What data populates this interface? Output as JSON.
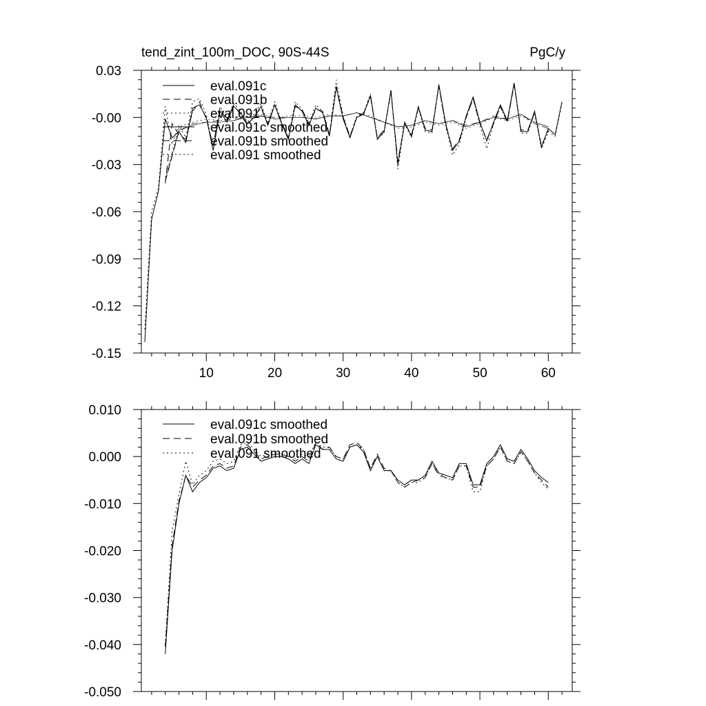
{
  "chart_data": [
    {
      "type": "line",
      "title": "tend_zint_100m_DOC, 90S-44S",
      "units": "PgC/y",
      "xlim": [
        0.5,
        63.5
      ],
      "ylim": [
        -0.15,
        0.03
      ],
      "xticks": [
        10,
        20,
        30,
        40,
        50,
        60
      ],
      "yticks": [
        0.03,
        0.0,
        -0.03,
        -0.06,
        -0.09,
        -0.12,
        -0.15
      ],
      "ytick_labels": [
        "0.03",
        "-0.00",
        "-0.03",
        "-0.06",
        "-0.09",
        "-0.12",
        "-0.15"
      ],
      "legend_position": "top-left",
      "series": [
        {
          "name": "eval.091c",
          "style": "solid",
          "x": [
            1,
            2,
            3,
            4,
            5,
            6,
            7,
            8,
            9,
            10,
            11,
            12,
            13,
            14,
            15,
            16,
            17,
            18,
            19,
            20,
            21,
            22,
            23,
            24,
            25,
            26,
            27,
            28,
            29,
            30,
            31,
            32,
            33,
            34,
            35,
            36,
            37,
            38,
            39,
            40,
            41,
            42,
            43,
            44,
            45,
            46,
            47,
            48,
            49,
            50,
            51,
            52,
            53,
            54,
            55,
            56,
            57,
            58,
            59,
            60,
            61,
            62
          ],
          "y": [
            -0.143,
            -0.065,
            -0.047,
            -0.001,
            -0.013,
            -0.009,
            -0.016,
            0.006,
            0.008,
            0.0,
            -0.021,
            0.004,
            -0.003,
            0.007,
            0.003,
            -0.004,
            0.0,
            0.007,
            -0.005,
            0.008,
            -0.004,
            -0.014,
            0.008,
            0.004,
            -0.005,
            0.006,
            0.003,
            -0.012,
            0.019,
            -0.001,
            -0.013,
            0.0,
            0.002,
            0.014,
            -0.014,
            -0.009,
            0.017,
            -0.03,
            -0.003,
            -0.012,
            0.007,
            -0.008,
            -0.009,
            0.021,
            -0.004,
            -0.021,
            -0.015,
            0.001,
            0.013,
            -0.003,
            -0.015,
            -0.003,
            0.008,
            -0.002,
            0.022,
            -0.009,
            -0.009,
            0.004,
            -0.019,
            -0.007,
            -0.011,
            0.01
          ]
        },
        {
          "name": "eval.091b",
          "style": "dashed",
          "x": [
            4,
            5,
            6,
            7,
            8,
            9,
            10,
            11,
            12,
            13,
            14,
            15,
            16,
            17,
            18,
            19,
            20,
            21,
            22,
            23,
            24,
            25,
            26,
            27,
            28,
            29,
            30,
            31,
            32,
            33,
            34,
            35,
            36,
            37,
            38,
            39,
            40,
            41,
            42,
            43,
            44,
            45,
            46,
            47,
            48,
            49,
            50,
            51,
            52,
            53,
            54,
            55,
            56,
            57,
            58,
            59,
            60
          ],
          "y": [
            -0.042,
            -0.004,
            -0.011,
            -0.014,
            0.004,
            0.01,
            -0.001,
            -0.018,
            0.006,
            -0.002,
            0.008,
            0.002,
            -0.005,
            0.001,
            0.006,
            -0.004,
            0.008,
            -0.003,
            -0.013,
            0.007,
            0.005,
            -0.004,
            0.005,
            0.004,
            -0.011,
            0.02,
            0.0,
            -0.012,
            0.0,
            0.003,
            0.013,
            -0.013,
            -0.008,
            0.016,
            -0.028,
            -0.004,
            -0.011,
            0.006,
            -0.007,
            -0.008,
            0.02,
            -0.005,
            -0.02,
            -0.014,
            0.0,
            0.012,
            -0.004,
            -0.014,
            -0.004,
            0.007,
            -0.003,
            0.021,
            -0.008,
            -0.008,
            0.003,
            -0.018,
            -0.008
          ]
        },
        {
          "name": "eval.091",
          "style": "dotted",
          "x": [
            1,
            2,
            3,
            4,
            5,
            6,
            7,
            8,
            9,
            10,
            11,
            12,
            13,
            14,
            15,
            16,
            17,
            18,
            19,
            20,
            21,
            22,
            23,
            24,
            25,
            26,
            27,
            28,
            29,
            30,
            31,
            32,
            33,
            34,
            35,
            36,
            37,
            38,
            39,
            40,
            41,
            42,
            43,
            44,
            45,
            46,
            47,
            48,
            49,
            50,
            51,
            52,
            53,
            54,
            55,
            56,
            57,
            58,
            59,
            60,
            61,
            62
          ],
          "y": [
            -0.135,
            -0.06,
            -0.045,
            0.007,
            -0.017,
            -0.005,
            -0.013,
            0.01,
            0.012,
            0.002,
            -0.02,
            0.007,
            -0.001,
            0.009,
            0.004,
            -0.003,
            0.002,
            0.009,
            -0.004,
            0.01,
            -0.003,
            -0.013,
            0.01,
            0.005,
            -0.004,
            0.008,
            0.004,
            -0.011,
            0.024,
            0.001,
            -0.012,
            0.001,
            0.003,
            0.015,
            -0.013,
            -0.01,
            0.018,
            -0.033,
            -0.004,
            -0.013,
            0.006,
            -0.009,
            -0.01,
            0.02,
            -0.006,
            -0.024,
            -0.017,
            0.0,
            0.012,
            -0.005,
            -0.02,
            -0.004,
            0.007,
            -0.003,
            0.021,
            -0.01,
            -0.01,
            0.003,
            -0.02,
            -0.009,
            -0.012,
            0.009
          ]
        },
        {
          "name": "eval.091c smoothed",
          "style": "solid",
          "width": 0.7,
          "x": [
            4,
            6,
            8,
            10,
            12,
            14,
            16,
            18,
            20,
            22,
            24,
            26,
            28,
            30,
            32,
            34,
            36,
            38,
            40,
            42,
            44,
            46,
            48,
            50,
            52,
            54,
            56,
            58,
            60
          ],
          "y": [
            -0.04,
            -0.008,
            -0.005,
            -0.003,
            -0.003,
            -0.002,
            0.0,
            0.001,
            -0.001,
            0.0,
            0.0,
            -0.001,
            0.001,
            0.001,
            0.003,
            0.0,
            -0.003,
            -0.006,
            -0.005,
            -0.002,
            -0.004,
            -0.002,
            -0.006,
            -0.003,
            0.0,
            -0.001,
            0.002,
            -0.003,
            -0.006
          ]
        },
        {
          "name": "eval.091b smoothed",
          "style": "dashed",
          "width": 0.7,
          "x": [
            4,
            6,
            8,
            10,
            12,
            14,
            16,
            18,
            20,
            22,
            24,
            26,
            28,
            30,
            32,
            34,
            36,
            38,
            40,
            42,
            44,
            46,
            48,
            50,
            52,
            54,
            56,
            58,
            60
          ],
          "y": [
            -0.041,
            -0.009,
            -0.004,
            -0.003,
            -0.002,
            -0.001,
            0.0,
            0.001,
            0.0,
            0.0,
            0.0,
            -0.001,
            0.001,
            0.001,
            0.003,
            0.0,
            -0.003,
            -0.006,
            -0.005,
            -0.002,
            -0.004,
            -0.002,
            -0.005,
            -0.003,
            0.001,
            -0.001,
            0.002,
            -0.004,
            -0.007
          ]
        },
        {
          "name": "eval.091 smoothed",
          "style": "dotted",
          "width": 0.7,
          "x": [
            4,
            6,
            8,
            10,
            12,
            14,
            16,
            18,
            20,
            22,
            24,
            26,
            28,
            30,
            32,
            34,
            36,
            38,
            40,
            42,
            44,
            46,
            48,
            50,
            52,
            54,
            56,
            58,
            60
          ],
          "y": [
            -0.038,
            -0.006,
            -0.003,
            -0.001,
            -0.002,
            0.0,
            0.001,
            0.002,
            0.0,
            0.001,
            0.001,
            0.0,
            0.002,
            0.001,
            0.003,
            0.001,
            -0.003,
            -0.007,
            -0.006,
            -0.003,
            -0.005,
            -0.003,
            -0.007,
            -0.004,
            0.0,
            -0.002,
            0.001,
            -0.004,
            -0.007
          ]
        }
      ]
    },
    {
      "type": "line",
      "title": "",
      "xlim": [
        0.5,
        63.5
      ],
      "ylim": [
        -0.05,
        0.01
      ],
      "xticks": [
        10,
        20,
        30,
        40,
        50,
        60
      ],
      "xtick_labels_shown": false,
      "yticks": [
        0.01,
        0.0,
        -0.01,
        -0.02,
        -0.03,
        -0.04,
        -0.05
      ],
      "ytick_labels": [
        "0.010",
        "0.000",
        "-0.010",
        "-0.020",
        "-0.030",
        "-0.040",
        "-0.050"
      ],
      "legend_position": "top-left",
      "series": [
        {
          "name": "eval.091c smoothed",
          "style": "solid",
          "x": [
            4,
            5,
            6,
            7,
            8,
            9,
            10,
            11,
            12,
            13,
            14,
            15,
            16,
            17,
            18,
            19,
            20,
            21,
            22,
            23,
            24,
            25,
            26,
            27,
            28,
            29,
            30,
            31,
            32,
            33,
            34,
            35,
            36,
            37,
            38,
            39,
            40,
            41,
            42,
            43,
            44,
            45,
            46,
            47,
            48,
            49,
            50,
            51,
            52,
            53,
            54,
            55,
            56,
            57,
            58,
            59,
            60
          ],
          "y": [
            -0.042,
            -0.02,
            -0.01,
            -0.004,
            -0.0075,
            -0.0055,
            -0.0045,
            -0.0025,
            -0.002,
            -0.003,
            -0.0025,
            0.0015,
            0.002,
            0.0005,
            -0.001,
            -0.0005,
            0.0,
            0.0,
            -0.0005,
            -0.0015,
            -0.0005,
            -0.0015,
            0.0025,
            0.0015,
            0.0015,
            -0.0005,
            -0.001,
            0.002,
            0.0025,
            0.001,
            -0.003,
            0.0,
            -0.003,
            -0.003,
            -0.005,
            -0.006,
            -0.005,
            -0.005,
            -0.004,
            -0.001,
            -0.0035,
            -0.004,
            -0.0045,
            -0.0015,
            -0.0015,
            -0.006,
            -0.006,
            -0.0015,
            0.0,
            0.0025,
            -0.0005,
            -0.001,
            0.0015,
            -0.0005,
            -0.003,
            -0.0045,
            -0.0055
          ]
        },
        {
          "name": "eval.091b smoothed",
          "style": "dashed",
          "x": [
            4,
            5,
            6,
            7,
            8,
            9,
            10,
            11,
            12,
            13,
            14,
            15,
            16,
            17,
            18,
            19,
            20,
            21,
            22,
            23,
            24,
            25,
            26,
            27,
            28,
            29,
            30,
            31,
            32,
            33,
            34,
            35,
            36,
            37,
            38,
            39,
            40,
            41,
            42,
            43,
            44,
            45,
            46,
            47,
            48,
            49,
            50,
            51,
            52,
            53,
            54,
            55,
            56,
            57,
            58,
            59,
            60
          ],
          "y": [
            -0.0405,
            -0.019,
            -0.0095,
            -0.004,
            -0.0065,
            -0.005,
            -0.004,
            -0.002,
            -0.0015,
            -0.0025,
            -0.002,
            0.002,
            0.0025,
            0.001,
            -0.0005,
            0.0,
            0.0005,
            0.0005,
            0.0,
            -0.001,
            0.0,
            -0.001,
            0.003,
            0.0015,
            0.002,
            0.0,
            -0.0005,
            0.0025,
            0.003,
            0.0015,
            -0.0025,
            0.0005,
            -0.0025,
            -0.003,
            -0.0055,
            -0.0065,
            -0.0055,
            -0.005,
            -0.0045,
            -0.0015,
            -0.004,
            -0.0045,
            -0.005,
            -0.002,
            -0.002,
            -0.0065,
            -0.0065,
            -0.002,
            -0.0005,
            0.002,
            -0.001,
            -0.0015,
            0.001,
            -0.001,
            -0.0035,
            -0.005,
            -0.0065
          ]
        },
        {
          "name": "eval.091 smoothed",
          "style": "dotted",
          "x": [
            4,
            5,
            6,
            7,
            8,
            9,
            10,
            11,
            12,
            13,
            14,
            15,
            16,
            17,
            18,
            19,
            20,
            21,
            22,
            23,
            24,
            25,
            26,
            27,
            28,
            29,
            30,
            31,
            32,
            33,
            34,
            35,
            36,
            37,
            38,
            39,
            40,
            41,
            42,
            43,
            44,
            45,
            46,
            47,
            48,
            49,
            50,
            51,
            52,
            53,
            54,
            55,
            56,
            57,
            58,
            59,
            60
          ],
          "y": [
            -0.04,
            -0.016,
            -0.008,
            -0.001,
            -0.006,
            -0.004,
            -0.003,
            -0.001,
            -0.0005,
            -0.0015,
            -0.001,
            0.0025,
            0.003,
            0.0015,
            0.0,
            0.0005,
            0.001,
            0.0005,
            0.0,
            -0.0005,
            0.0005,
            0.0,
            0.003,
            0.002,
            0.002,
            0.0,
            -0.0005,
            0.002,
            0.0025,
            0.0015,
            -0.0025,
            0.0,
            -0.003,
            -0.003,
            -0.0055,
            -0.0065,
            -0.0055,
            -0.0055,
            -0.0045,
            -0.0015,
            -0.0035,
            -0.0045,
            -0.005,
            -0.002,
            -0.002,
            -0.0075,
            -0.0075,
            -0.002,
            -0.0005,
            0.002,
            -0.001,
            -0.0015,
            0.001,
            -0.001,
            -0.0035,
            -0.0055,
            -0.007
          ]
        }
      ]
    }
  ]
}
